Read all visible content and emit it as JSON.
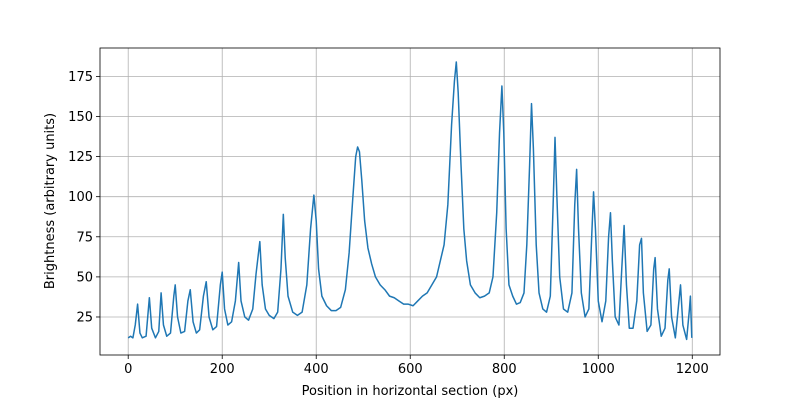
{
  "chart_data": {
    "type": "line",
    "x_label": "Position in horizontal section (px)",
    "y_label": "Brightness (arbitrary units)",
    "x": [
      0,
      5,
      10,
      15,
      20,
      25,
      30,
      38,
      45,
      50,
      58,
      65,
      70,
      75,
      82,
      90,
      97,
      100,
      105,
      112,
      120,
      127,
      132,
      138,
      145,
      152,
      160,
      166,
      172,
      180,
      188,
      196,
      200,
      205,
      212,
      220,
      228,
      235,
      240,
      248,
      256,
      265,
      272,
      280,
      285,
      292,
      300,
      310,
      318,
      325,
      330,
      334,
      340,
      350,
      360,
      370,
      380,
      388,
      395,
      400,
      405,
      412,
      422,
      432,
      442,
      452,
      462,
      470,
      478,
      484,
      488,
      492,
      497,
      503,
      510,
      518,
      526,
      536,
      546,
      556,
      566,
      576,
      586,
      596,
      606,
      616,
      626,
      636,
      646,
      656,
      664,
      672,
      680,
      688,
      694,
      698,
      702,
      708,
      714,
      720,
      728,
      738,
      748,
      758,
      768,
      776,
      784,
      790,
      795,
      799,
      804,
      810,
      818,
      826,
      834,
      842,
      848,
      854,
      858,
      862,
      868,
      874,
      882,
      890,
      898,
      904,
      908,
      912,
      918,
      926,
      935,
      944,
      950,
      954,
      958,
      964,
      972,
      980,
      986,
      990,
      994,
      1000,
      1008,
      1016,
      1022,
      1026,
      1030,
      1036,
      1044,
      1050,
      1055,
      1060,
      1066,
      1074,
      1082,
      1088,
      1092,
      1096,
      1104,
      1112,
      1118,
      1121,
      1126,
      1134,
      1142,
      1148,
      1151,
      1156,
      1164,
      1170,
      1175,
      1180,
      1188,
      1194,
      1196,
      1199
    ],
    "series": [
      {
        "color": "#1f77b4",
        "values": [
          12,
          13,
          12,
          20,
          33,
          15,
          12,
          13,
          37,
          18,
          12,
          16,
          40,
          20,
          13,
          15,
          38,
          45,
          25,
          15,
          16,
          35,
          42,
          22,
          15,
          17,
          38,
          47,
          25,
          17,
          19,
          45,
          53,
          30,
          20,
          22,
          35,
          59,
          35,
          25,
          23,
          30,
          52,
          72,
          45,
          30,
          26,
          24,
          28,
          55,
          89,
          62,
          38,
          28,
          26,
          28,
          45,
          80,
          101,
          85,
          55,
          38,
          32,
          29,
          29,
          31,
          42,
          65,
          100,
          125,
          131,
          128,
          110,
          85,
          68,
          58,
          50,
          45,
          42,
          38,
          37,
          35,
          33,
          33,
          32,
          35,
          38,
          40,
          45,
          50,
          60,
          70,
          95,
          145,
          172,
          184,
          165,
          120,
          80,
          60,
          45,
          40,
          37,
          38,
          40,
          50,
          90,
          140,
          169,
          140,
          80,
          45,
          38,
          33,
          34,
          40,
          70,
          120,
          158,
          130,
          70,
          40,
          30,
          28,
          38,
          95,
          137,
          100,
          50,
          30,
          28,
          40,
          95,
          117,
          80,
          40,
          25,
          30,
          75,
          103,
          80,
          35,
          22,
          35,
          75,
          90,
          60,
          25,
          20,
          55,
          82,
          45,
          18,
          18,
          35,
          70,
          74,
          40,
          16,
          20,
          55,
          62,
          30,
          13,
          18,
          48,
          55,
          25,
          12,
          30,
          45,
          20,
          11,
          30,
          38,
          12
        ]
      }
    ],
    "xlim": [
      -60,
      1259
    ],
    "ylim": [
      1.3,
      192.7
    ],
    "xticks": [
      0,
      200,
      400,
      600,
      800,
      1000,
      1200
    ],
    "yticks": [
      25,
      50,
      75,
      100,
      125,
      150,
      175
    ],
    "grid": true
  }
}
